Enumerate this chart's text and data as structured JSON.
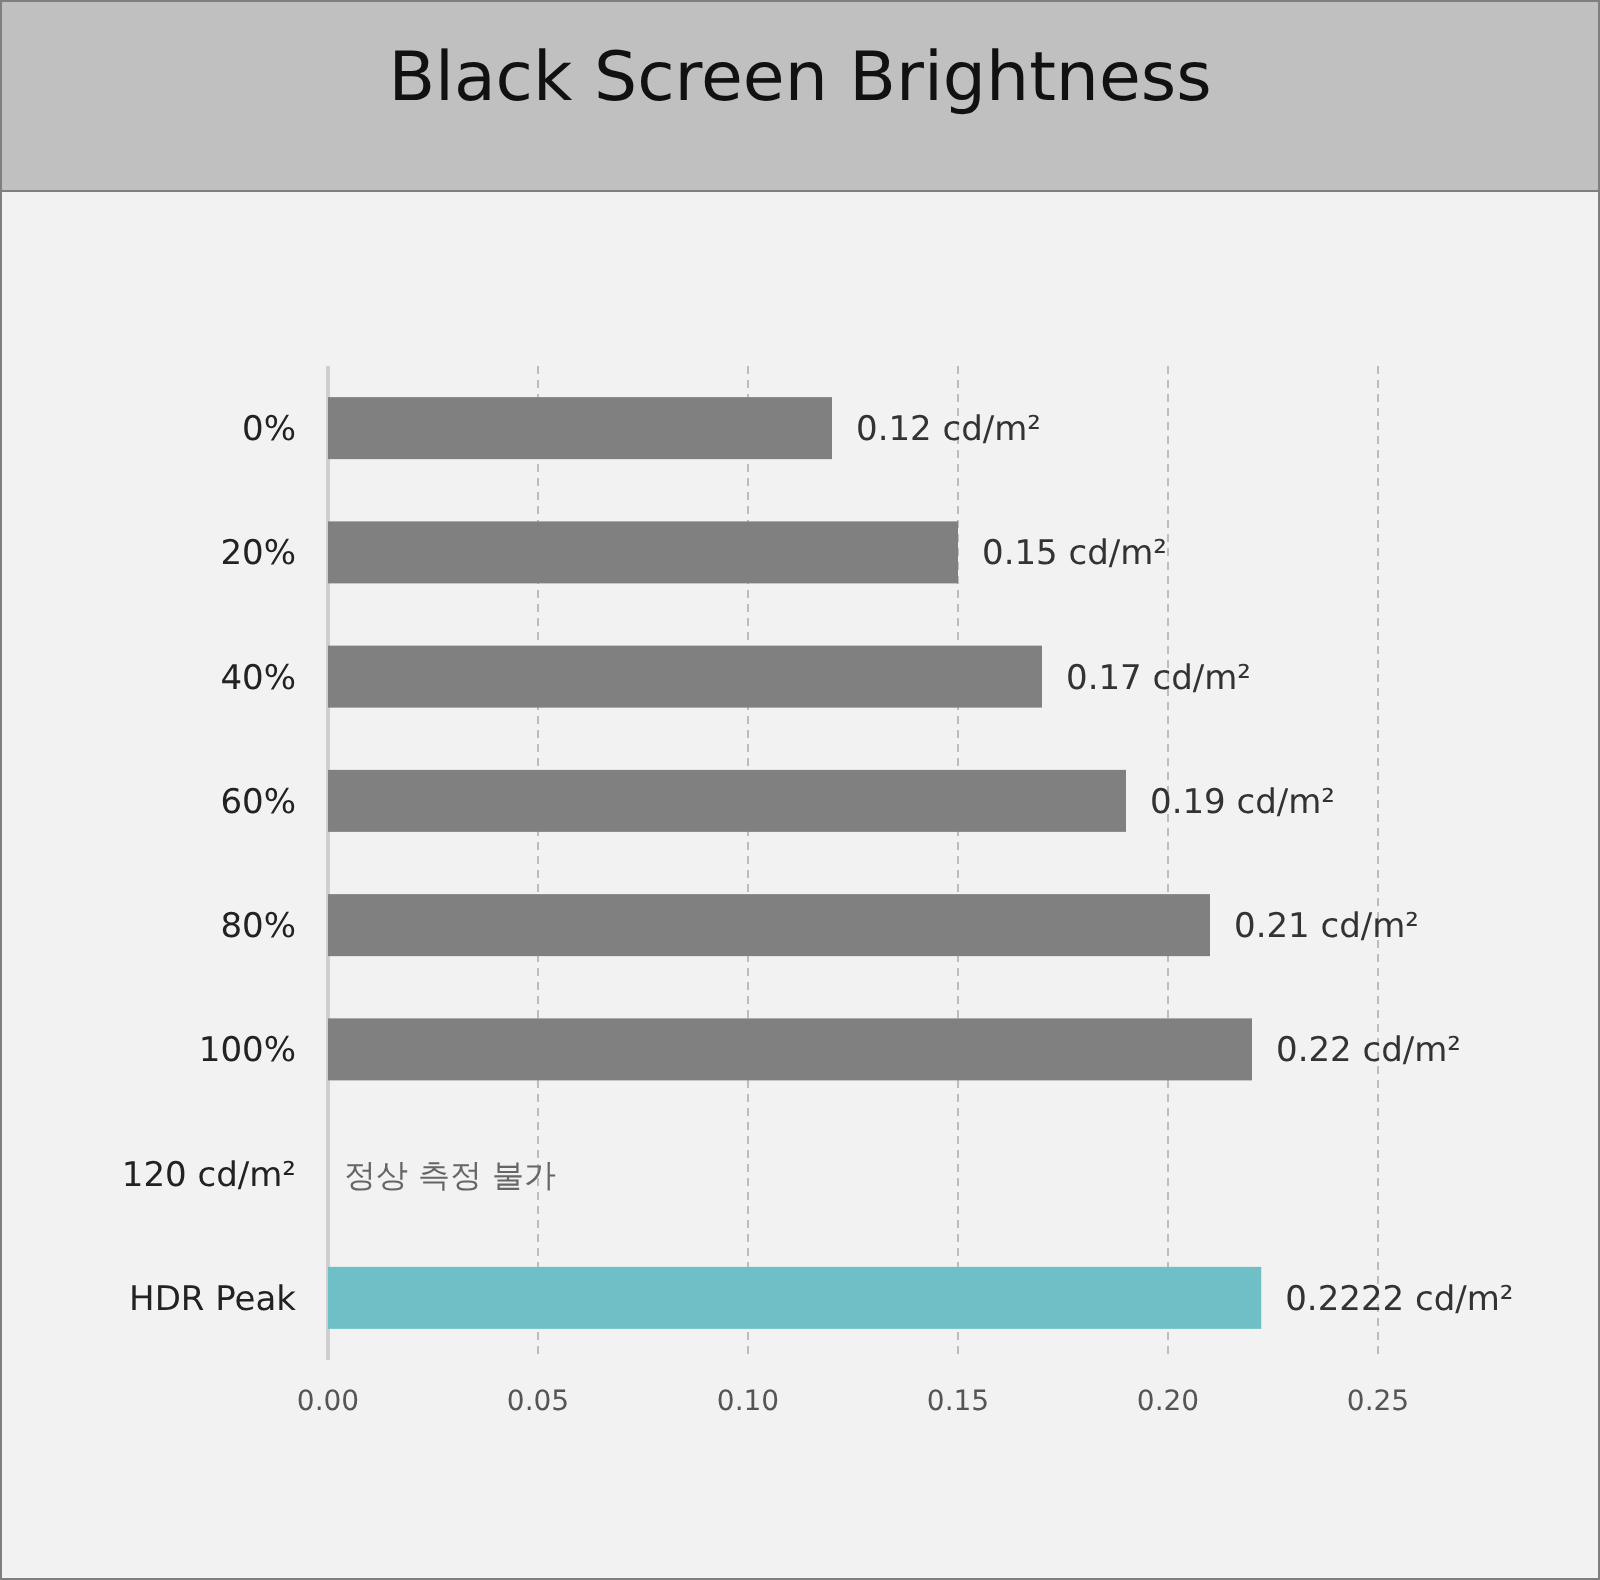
{
  "chart_data": {
    "type": "bar",
    "orientation": "horizontal",
    "title": "Black Screen Brightness",
    "categories": [
      "0%",
      "20%",
      "40%",
      "60%",
      "80%",
      "100%",
      "120 cd/m²",
      "HDR Peak"
    ],
    "values": [
      0.12,
      0.15,
      0.17,
      0.19,
      0.21,
      0.22,
      null,
      0.2222
    ],
    "colors": [
      "#808080",
      "#808080",
      "#808080",
      "#808080",
      "#808080",
      "#808080",
      null,
      "#6fbfc6"
    ],
    "value_labels": [
      "0.12 cd/m²",
      "0.15 cd/m²",
      "0.17 cd/m²",
      "0.19 cd/m²",
      "0.21 cd/m²",
      "0.22 cd/m²",
      null,
      "0.2222 cd/m²"
    ],
    "xlim": [
      0,
      0.25
    ],
    "xticks": [
      {
        "value": 0,
        "label": "0.00"
      },
      {
        "value": 0.05,
        "label": "0.05"
      },
      {
        "value": 0.1,
        "label": "0.10"
      },
      {
        "value": 0.15,
        "label": "0.15"
      },
      {
        "value": 0.2,
        "label": "0.20"
      },
      {
        "value": 0.25,
        "label": "0.25"
      }
    ],
    "grid": "x",
    "annotations": [
      "정상 측정 불가"
    ]
  }
}
